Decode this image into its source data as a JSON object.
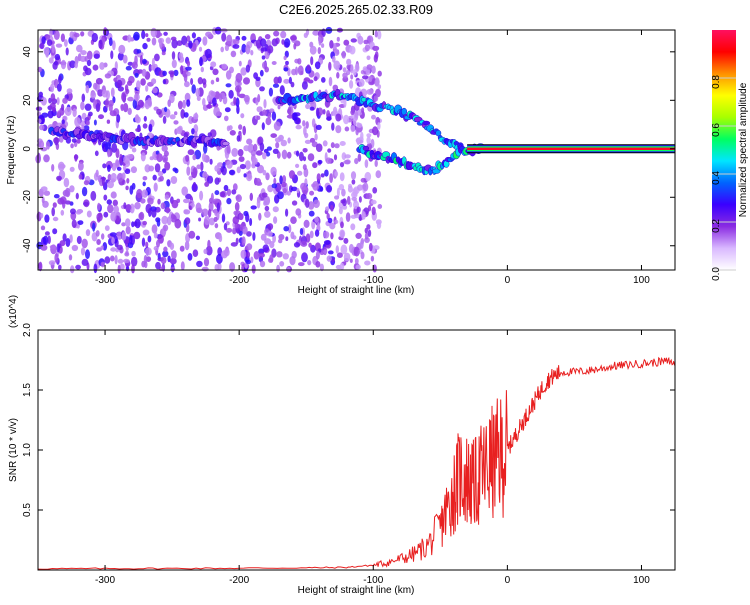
{
  "figure": {
    "title": "C2E6.2025.265.02.33.R09"
  },
  "chart_data": [
    {
      "type": "heatmap",
      "xlabel": "Height of straight line (km)",
      "ylabel": "Frequency (Hz)",
      "xlim": [
        -350,
        125
      ],
      "ylim": [
        -50,
        49
      ],
      "x_ticks": [
        -300,
        -200,
        -100,
        0,
        100
      ],
      "x_tick_labels": [
        "-300",
        "-200",
        "-100",
        "0",
        "100"
      ],
      "y_ticks": [
        -40,
        -20,
        0,
        20,
        40
      ],
      "y_tick_labels": [
        "-40",
        "-20",
        "0",
        "20",
        "40"
      ],
      "colorbar": {
        "label": "Normalized spectral amplitude",
        "range": [
          0,
          1
        ],
        "ticks": [
          0,
          0.2,
          0.4,
          0.6,
          0.8
        ],
        "tick_labels": [
          "0.0",
          "0.2",
          "0.4",
          "0.6",
          "0.8"
        ],
        "colormap": [
          "#ffffff",
          "#d9b8ff",
          "#8a2be2",
          "#3a00ff",
          "#0064ff",
          "#00e6ff",
          "#00ff60",
          "#a8ff00",
          "#ffff00",
          "#ff9000",
          "#ff0000",
          "#ff1060"
        ]
      },
      "signal_tracks": [
        {
          "name": "upper",
          "points": [
            [
              -170,
              20
            ],
            [
              -150,
              21
            ],
            [
              -125,
              22
            ],
            [
              -110,
              20
            ],
            [
              -80,
              15
            ],
            [
              -60,
              10
            ],
            [
              -45,
              3
            ],
            [
              -35,
              1
            ]
          ],
          "amplitude": 0.35
        },
        {
          "name": "lower",
          "points": [
            [
              -110,
              0
            ],
            [
              -100,
              -2
            ],
            [
              -80,
              -5
            ],
            [
              -65,
              -8
            ],
            [
              -55,
              -9
            ],
            [
              -45,
              -5
            ],
            [
              -35,
              -1
            ],
            [
              -20,
              0
            ]
          ],
          "amplitude": 0.4
        },
        {
          "name": "early",
          "points": [
            [
              -340,
              7
            ],
            [
              -320,
              6
            ],
            [
              -300,
              5
            ],
            [
              -280,
              4
            ],
            [
              -260,
              3
            ],
            [
              -230,
              3
            ],
            [
              -210,
              2
            ]
          ],
          "amplitude": 0.25
        },
        {
          "name": "carrier",
          "points": [
            [
              -30,
              0
            ],
            [
              0,
              0
            ],
            [
              50,
              0
            ],
            [
              125,
              0
            ]
          ],
          "amplitude": 0.9
        }
      ]
    },
    {
      "type": "line",
      "xlabel": "Height of straight line (km)",
      "ylabel": "SNR (10 * v/v)",
      "y_multiplier": "(x10^4)",
      "xlim": [
        -350,
        125
      ],
      "ylim": [
        0,
        20000
      ],
      "x_ticks": [
        -300,
        -200,
        -100,
        0,
        100
      ],
      "x_tick_labels": [
        "-300",
        "-200",
        "-100",
        "0",
        "100"
      ],
      "y_ticks": [
        5000,
        10000,
        15000,
        20000
      ],
      "y_tick_labels": [
        "0.5",
        "1.0",
        "1.5",
        "2.0"
      ],
      "series": [
        {
          "color": "#e82020",
          "x": [
            -350,
            -300,
            -250,
            -200,
            -150,
            -120,
            -100,
            -90,
            -80,
            -70,
            -60,
            -50,
            -45,
            -40,
            -35,
            -30,
            -25,
            -20,
            -15,
            -10,
            -5,
            0,
            5,
            10,
            15,
            20,
            25,
            30,
            35,
            40,
            50,
            60,
            70,
            80,
            90,
            100,
            110,
            120,
            125
          ],
          "y": [
            100,
            120,
            130,
            150,
            180,
            220,
            400,
            600,
            900,
            1300,
            2000,
            3500,
            5000,
            6500,
            8000,
            7500,
            7000,
            8000,
            8500,
            9000,
            9500,
            10000,
            11000,
            12000,
            13000,
            14000,
            15000,
            15800,
            16200,
            16500,
            16500,
            16600,
            16800,
            17000,
            17100,
            17200,
            17300,
            17400,
            17200
          ]
        }
      ]
    }
  ]
}
